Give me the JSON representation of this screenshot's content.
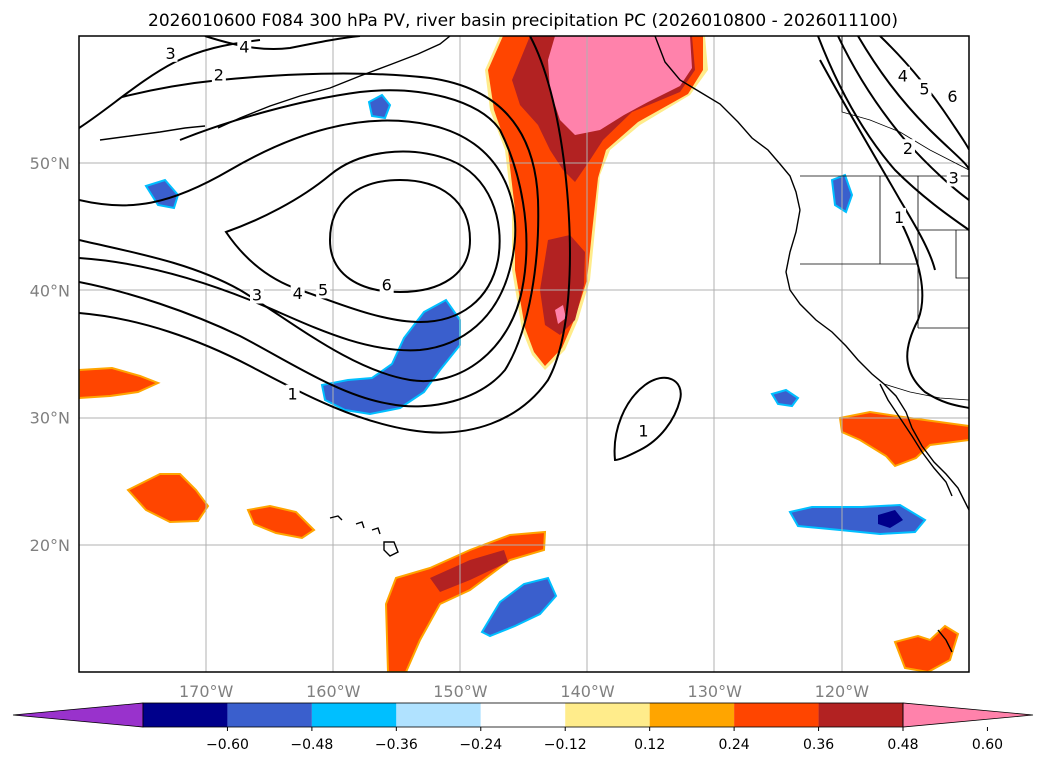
{
  "title": "2026010600 F084 300 hPa PV, river basin precipitation PC (2026010800 - 2026011100)",
  "map": {
    "lon_range": [
      -180,
      -110
    ],
    "lat_range": [
      10,
      60
    ],
    "lat_ticks": [
      {
        "value": 20,
        "label": "20°N"
      },
      {
        "value": 30,
        "label": "30°N"
      },
      {
        "value": 40,
        "label": "40°N"
      },
      {
        "value": 50,
        "label": "50°N"
      }
    ],
    "lon_ticks": [
      {
        "value": -170,
        "label": "170°W"
      },
      {
        "value": -160,
        "label": "160°W"
      },
      {
        "value": -150,
        "label": "150°W"
      },
      {
        "value": -140,
        "label": "140°W"
      },
      {
        "value": -130,
        "label": "130°W"
      },
      {
        "value": -120,
        "label": "120°W"
      }
    ],
    "pv_labels": [
      {
        "text": "3",
        "lon": -172.8,
        "lat": 58.6
      },
      {
        "text": "4",
        "lon": -167,
        "lat": 59.1
      },
      {
        "text": "2",
        "lon": -169,
        "lat": 56.9
      },
      {
        "text": "6",
        "lon": -155.8,
        "lat": 40.4
      },
      {
        "text": "5",
        "lon": -160.8,
        "lat": 40.0
      },
      {
        "text": "4",
        "lon": -162.8,
        "lat": 39.7
      },
      {
        "text": "3",
        "lon": -166,
        "lat": 39.6
      },
      {
        "text": "1",
        "lon": -163.2,
        "lat": 31.8
      },
      {
        "text": "1",
        "lon": -135.6,
        "lat": 28.9
      },
      {
        "text": "4",
        "lon": -115.2,
        "lat": 56.8
      },
      {
        "text": "5",
        "lon": -113.5,
        "lat": 55.8
      },
      {
        "text": "6",
        "lon": -111.3,
        "lat": 55.2
      },
      {
        "text": "2",
        "lon": -114.8,
        "lat": 51.1
      },
      {
        "text": "3",
        "lon": -111.2,
        "lat": 48.8
      },
      {
        "text": "1",
        "lon": -115.5,
        "lat": 45.7
      }
    ]
  },
  "colorbar": {
    "colors": [
      "#9932cc",
      "#00008b",
      "#3a5fcd",
      "#00bfff",
      "#b0e2ff",
      "#ffffff",
      "#ffec8b",
      "#ffa500",
      "#ff4500",
      "#b22222",
      "#ff82ab"
    ],
    "tick_labels": [
      "−0.60",
      "−0.48",
      "−0.36",
      "−0.24",
      "−0.12",
      "0.12",
      "0.24",
      "0.36",
      "0.48",
      "0.60"
    ]
  }
}
